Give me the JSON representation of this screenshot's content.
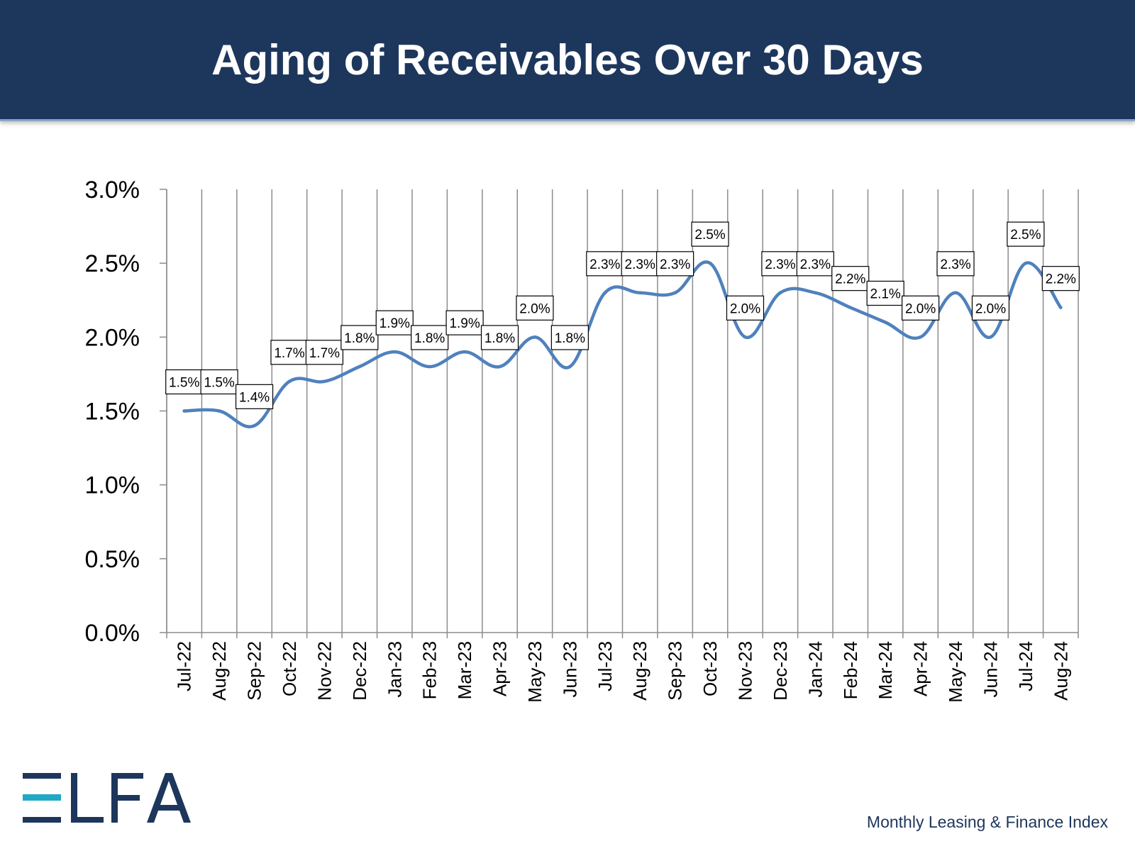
{
  "header": {
    "title": "Aging of Receivables Over 30 Days"
  },
  "colors": {
    "header_bg": "#1d365c",
    "line": "#4f81bd",
    "grid": "#8c8c8c",
    "logo_dark": "#1d365c",
    "logo_accent": "#1fa9c4"
  },
  "chart_data": {
    "type": "line",
    "title": "",
    "xlabel": "",
    "ylabel": "",
    "categories": [
      "Jul-22",
      "Aug-22",
      "Sep-22",
      "Oct-22",
      "Nov-22",
      "Dec-22",
      "Jan-23",
      "Feb-23",
      "Mar-23",
      "Apr-23",
      "May-23",
      "Jun-23",
      "Jul-23",
      "Aug-23",
      "Sep-23",
      "Oct-23",
      "Nov-23",
      "Dec-23",
      "Jan-24",
      "Feb-24",
      "Mar-24",
      "Apr-24",
      "May-24",
      "Jun-24",
      "Jul-24",
      "Aug-24"
    ],
    "values": [
      1.5,
      1.5,
      1.4,
      1.7,
      1.7,
      1.8,
      1.9,
      1.8,
      1.9,
      1.8,
      2.0,
      1.8,
      2.3,
      2.3,
      2.3,
      2.5,
      2.0,
      2.3,
      2.3,
      2.2,
      2.1,
      2.0,
      2.3,
      2.0,
      2.5,
      2.2
    ],
    "data_labels": [
      "1.5%",
      "1.5%",
      "1.4%",
      "1.7%",
      "1.7%",
      "1.8%",
      "1.9%",
      "1.8%",
      "1.9%",
      "1.8%",
      "2.0%",
      "1.8%",
      "2.3%",
      "2.3%",
      "2.3%",
      "2.5%",
      "2.0%",
      "2.3%",
      "2.3%",
      "2.2%",
      "2.1%",
      "2.0%",
      "2.3%",
      "2.0%",
      "2.5%",
      "2.2%"
    ],
    "ylim": [
      0,
      3.0
    ],
    "yticks": [
      0,
      0.5,
      1.0,
      1.5,
      2.0,
      2.5,
      3.0
    ],
    "ytick_labels": [
      "0.0%",
      "0.5%",
      "1.0%",
      "1.5%",
      "2.0%",
      "2.5%",
      "3.0%"
    ],
    "grid": "vertical",
    "legend": "none"
  },
  "logo": {
    "text": "ELFA"
  },
  "footer": {
    "text": "Monthly Leasing & Finance Index"
  }
}
